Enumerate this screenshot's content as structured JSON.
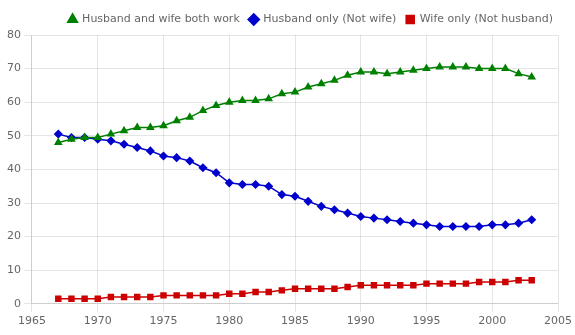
{
  "chart_data": {
    "type": "line",
    "x": [
      1967,
      1968,
      1969,
      1970,
      1971,
      1972,
      1973,
      1974,
      1975,
      1976,
      1977,
      1978,
      1979,
      1980,
      1981,
      1982,
      1983,
      1984,
      1985,
      1986,
      1987,
      1988,
      1989,
      1990,
      1991,
      1992,
      1993,
      1994,
      1995,
      1996,
      1997,
      1998,
      1999,
      2000,
      2001,
      2002,
      2003
    ],
    "series": [
      {
        "name": "Husband and wife both work",
        "color": "#008000",
        "marker": "triangle",
        "values": [
          48.0,
          49.0,
          49.5,
          49.5,
          50.5,
          51.5,
          52.5,
          52.5,
          53.0,
          54.5,
          55.5,
          57.5,
          59.0,
          60.0,
          60.5,
          60.5,
          61.0,
          62.5,
          63.0,
          64.5,
          65.5,
          66.5,
          68.0,
          69.0,
          69.0,
          68.5,
          69.0,
          69.5,
          70.0,
          70.5,
          70.5,
          70.5,
          70.0,
          70.0,
          70.0,
          68.5,
          67.5
        ]
      },
      {
        "name": "Husband only (Not wife)",
        "color": "#0000CD",
        "marker": "diamond",
        "values": [
          50.5,
          49.5,
          49.5,
          49.0,
          48.5,
          47.5,
          46.5,
          45.5,
          44.0,
          43.5,
          42.5,
          40.5,
          39.0,
          36.0,
          35.5,
          35.5,
          35.0,
          32.5,
          32.0,
          30.5,
          29.0,
          28.0,
          27.0,
          26.0,
          25.5,
          25.0,
          24.5,
          24.0,
          23.5,
          23.0,
          23.0,
          23.0,
          23.0,
          23.5,
          23.5,
          24.0,
          25.0
        ]
      },
      {
        "name": "Wife only (Not husband)",
        "color": "#CC0000",
        "marker": "square",
        "values": [
          1.5,
          1.5,
          1.5,
          1.5,
          2.0,
          2.0,
          2.0,
          2.0,
          2.5,
          2.5,
          2.5,
          2.5,
          2.5,
          3.0,
          3.0,
          3.5,
          3.5,
          4.0,
          4.5,
          4.5,
          4.5,
          4.5,
          5.0,
          5.5,
          5.5,
          5.5,
          5.5,
          5.5,
          6.0,
          6.0,
          6.0,
          6.0,
          6.5,
          6.5,
          6.5,
          7.0,
          7.0
        ]
      }
    ],
    "xlim": [
      1965,
      2005
    ],
    "xticks": [
      1965,
      1970,
      1975,
      1980,
      1985,
      1990,
      1995,
      2000,
      2005
    ],
    "ylim": [
      0,
      80
    ],
    "yticks": [
      0,
      10,
      20,
      30,
      40,
      50,
      60,
      70,
      80
    ],
    "grid": true,
    "legend": "upper right"
  }
}
